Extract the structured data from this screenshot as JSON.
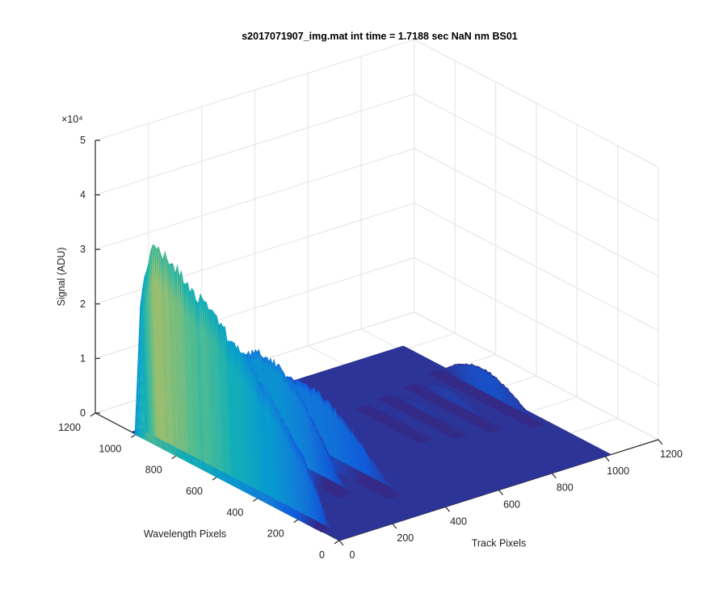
{
  "chart_data": {
    "type": "surface",
    "title": "s2017071907_img.mat int time = 1.7188 sec  NaN nm BS01",
    "xlabel": "Track Pixels",
    "ylabel": "Wavelength Pixels",
    "zlabel": "Signal (ADU)",
    "z_exponent_label": "×10⁴",
    "xlim": [
      0,
      1200
    ],
    "ylim": [
      0,
      1200
    ],
    "zlim": [
      0,
      50000
    ],
    "x_ticks": [
      0,
      200,
      400,
      600,
      800,
      1000,
      1200
    ],
    "y_ticks": [
      0,
      200,
      400,
      600,
      800,
      1000,
      1200
    ],
    "z_ticks": [
      0,
      1,
      2,
      3,
      4,
      5
    ],
    "grid": true,
    "colormap": "parula",
    "data_extent": {
      "x": [
        0,
        1024
      ],
      "y": [
        0,
        1024
      ]
    },
    "peaks": [
      {
        "track_center": 15,
        "track_width": 20,
        "wavelength_start": 80,
        "wavelength_end": 1000,
        "max_signal": 40000
      },
      {
        "track_center": 110,
        "track_width": 30,
        "wavelength_start": 300,
        "wavelength_end": 1000,
        "max_signal": 28000
      },
      {
        "track_center": 220,
        "track_width": 30,
        "wavelength_start": 250,
        "wavelength_end": 1000,
        "max_signal": 24000
      },
      {
        "track_center": 330,
        "track_width": 30,
        "wavelength_start": 150,
        "wavelength_end": 1000,
        "max_signal": 16000
      },
      {
        "track_center": 980,
        "track_width": 25,
        "wavelength_start": 300,
        "wavelength_end": 820,
        "max_signal": 7000
      },
      {
        "track_center": 860,
        "track_width": 25,
        "wavelength_start": 350,
        "wavelength_end": 780,
        "max_signal": 4000
      },
      {
        "track_center": 750,
        "track_width": 25,
        "wavelength_start": 380,
        "wavelength_end": 760,
        "max_signal": 3000
      },
      {
        "track_center": 650,
        "track_width": 25,
        "wavelength_start": 420,
        "wavelength_end": 740,
        "max_signal": 2000
      }
    ],
    "background_signal": 200
  }
}
